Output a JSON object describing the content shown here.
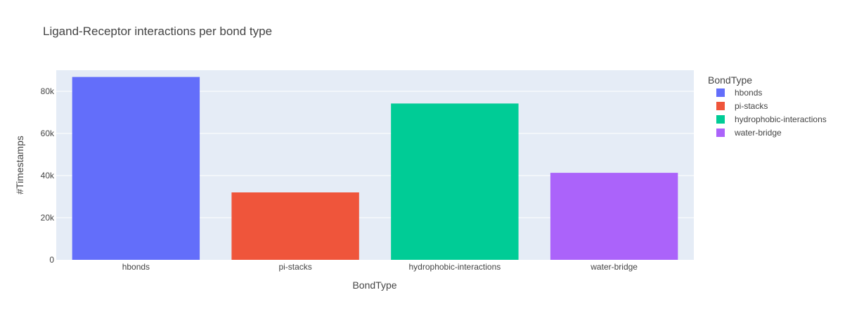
{
  "chart_data": {
    "type": "bar",
    "title": "Ligand-Receptor interactions per bond type",
    "xlabel": "BondType",
    "ylabel": "#Timestamps",
    "categories": [
      "hbonds",
      "pi-stacks",
      "hydrophobic-interactions",
      "water-bridge"
    ],
    "values": [
      86800,
      32000,
      74200,
      41300
    ],
    "colors": [
      "#636efa",
      "#ef553b",
      "#00cc96",
      "#ab63fa"
    ],
    "ylim": [
      0,
      90000
    ],
    "yticks": [
      0,
      20000,
      40000,
      60000,
      80000
    ],
    "ytick_labels": [
      "0",
      "20k",
      "40k",
      "60k",
      "80k"
    ],
    "grid": true,
    "plot_background": "#e5ecf6",
    "legend": {
      "title": "BondType",
      "placement": "right",
      "items": [
        "hbonds",
        "pi-stacks",
        "hydrophobic-interactions",
        "water-bridge"
      ]
    }
  }
}
